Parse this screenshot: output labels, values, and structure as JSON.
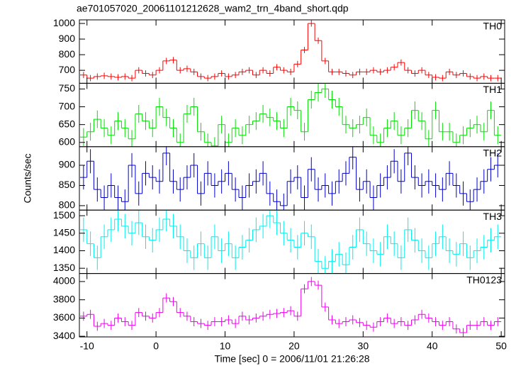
{
  "chart_data": [
    {
      "type": "step",
      "title": "ae701057020_20061101212628_wam2_trn_4band_short.qdp",
      "label": "TH0",
      "color": "#ff0000",
      "error": 20,
      "ylim": [
        617,
        1023
      ],
      "yticks": [
        700,
        800,
        900,
        1000
      ],
      "x": [
        -10.5,
        -9.5,
        -8.5,
        -7.5,
        -6.5,
        -5.5,
        -4.5,
        -3.5,
        -2.5,
        -1.5,
        -0.5,
        0.5,
        1.5,
        2.5,
        3.5,
        4.5,
        5.5,
        6.5,
        7.5,
        8.5,
        9.5,
        10.5,
        11.5,
        12.5,
        13.5,
        14.5,
        15.5,
        16.5,
        17.5,
        18.5,
        19.5,
        20.5,
        21.5,
        22.5,
        23.5,
        24.5,
        25.5,
        26.5,
        27.5,
        28.5,
        29.5,
        30.5,
        31.5,
        32.5,
        33.5,
        34.5,
        35.5,
        36.5,
        37.5,
        38.5,
        39.5,
        40.5,
        41.5,
        42.5,
        43.5,
        44.5,
        45.5,
        46.5,
        47.5,
        48.5,
        49.5
      ],
      "values": [
        670,
        650,
        660,
        665,
        660,
        655,
        660,
        650,
        700,
        680,
        670,
        700,
        760,
        765,
        700,
        710,
        690,
        660,
        650,
        660,
        680,
        660,
        670,
        690,
        700,
        670,
        700,
        680,
        720,
        700,
        690,
        740,
        830,
        1000,
        890,
        760,
        690,
        690,
        680,
        670,
        690,
        690,
        700,
        690,
        700,
        720,
        750,
        700,
        680,
        700,
        670,
        655,
        650,
        690,
        670,
        680,
        660,
        650,
        660,
        650,
        650
      ]
    },
    {
      "type": "step",
      "label": "TH1",
      "color": "#00e000",
      "error": 25,
      "ylim": [
        588,
        766
      ],
      "yticks": [
        600,
        650,
        700,
        750
      ],
      "x": [
        -10.5,
        -9.5,
        -8.5,
        -7.5,
        -6.5,
        -5.5,
        -4.5,
        -3.5,
        -2.5,
        -1.5,
        -0.5,
        0.5,
        1.5,
        2.5,
        3.5,
        4.5,
        5.5,
        6.5,
        7.5,
        8.5,
        9.5,
        10.5,
        11.5,
        12.5,
        13.5,
        14.5,
        15.5,
        16.5,
        17.5,
        18.5,
        19.5,
        20.5,
        21.5,
        22.5,
        23.5,
        24.5,
        25.5,
        26.5,
        27.5,
        28.5,
        29.5,
        30.5,
        31.5,
        32.5,
        33.5,
        34.5,
        35.5,
        36.5,
        37.5,
        38.5,
        39.5,
        40.5,
        41.5,
        42.5,
        43.5,
        44.5,
        45.5,
        46.5,
        47.5,
        48.5,
        49.5
      ],
      "values": [
        615,
        630,
        665,
        640,
        620,
        660,
        640,
        610,
        680,
        660,
        640,
        700,
        670,
        640,
        600,
        680,
        700,
        630,
        600,
        590,
        650,
        600,
        640,
        620,
        650,
        660,
        680,
        670,
        660,
        640,
        700,
        690,
        630,
        720,
        740,
        750,
        720,
        700,
        650,
        640,
        650,
        670,
        620,
        600,
        640,
        660,
        620,
        640,
        690,
        660,
        610,
        690,
        630,
        630,
        600,
        620,
        640,
        650,
        630,
        690,
        620
      ]
    },
    {
      "type": "step",
      "label": "TH2",
      "ylabel": "Counts/sec",
      "color": "#0000cc",
      "error": 30,
      "ylim": [
        789,
        946
      ],
      "yticks": [
        800,
        850,
        900
      ],
      "x": [
        -10.5,
        -9.5,
        -8.5,
        -7.5,
        -6.5,
        -5.5,
        -4.5,
        -3.5,
        -2.5,
        -1.5,
        -0.5,
        0.5,
        1.5,
        2.5,
        3.5,
        4.5,
        5.5,
        6.5,
        7.5,
        8.5,
        9.5,
        10.5,
        11.5,
        12.5,
        13.5,
        14.5,
        15.5,
        16.5,
        17.5,
        18.5,
        19.5,
        20.5,
        21.5,
        22.5,
        23.5,
        24.5,
        25.5,
        26.5,
        27.5,
        28.5,
        29.5,
        30.5,
        31.5,
        32.5,
        33.5,
        34.5,
        35.5,
        36.5,
        37.5,
        38.5,
        39.5,
        40.5,
        41.5,
        42.5,
        43.5,
        44.5,
        45.5,
        46.5,
        47.5,
        48.5,
        49.5
      ],
      "values": [
        870,
        910,
        840,
        820,
        850,
        820,
        810,
        900,
        830,
        880,
        870,
        860,
        930,
        860,
        840,
        870,
        900,
        830,
        880,
        850,
        860,
        880,
        840,
        820,
        850,
        860,
        880,
        830,
        810,
        800,
        860,
        870,
        820,
        890,
        840,
        850,
        830,
        860,
        880,
        920,
        840,
        860,
        820,
        850,
        870,
        910,
        860,
        930,
        870,
        850,
        860,
        850,
        840,
        880,
        850,
        830,
        810,
        840,
        860,
        890,
        900
      ]
    },
    {
      "type": "step",
      "label": "TH3",
      "color": "#00eeee",
      "error": 35,
      "ylim": [
        1335,
        1516
      ],
      "yticks": [
        1350,
        1400,
        1450,
        1500
      ],
      "x": [
        -10.5,
        -9.5,
        -8.5,
        -7.5,
        -6.5,
        -5.5,
        -4.5,
        -3.5,
        -2.5,
        -1.5,
        -0.5,
        0.5,
        1.5,
        2.5,
        3.5,
        4.5,
        5.5,
        6.5,
        7.5,
        8.5,
        9.5,
        10.5,
        11.5,
        12.5,
        13.5,
        14.5,
        15.5,
        16.5,
        17.5,
        18.5,
        19.5,
        20.5,
        21.5,
        22.5,
        23.5,
        24.5,
        25.5,
        26.5,
        27.5,
        28.5,
        29.5,
        30.5,
        31.5,
        32.5,
        33.5,
        34.5,
        35.5,
        36.5,
        37.5,
        38.5,
        39.5,
        40.5,
        41.5,
        42.5,
        43.5,
        44.5,
        45.5,
        46.5,
        47.5,
        48.5,
        49.5
      ],
      "values": [
        1460,
        1420,
        1380,
        1440,
        1460,
        1490,
        1470,
        1450,
        1480,
        1440,
        1430,
        1460,
        1490,
        1470,
        1440,
        1400,
        1380,
        1420,
        1380,
        1440,
        1400,
        1420,
        1380,
        1410,
        1430,
        1460,
        1470,
        1500,
        1480,
        1450,
        1430,
        1410,
        1450,
        1440,
        1370,
        1350,
        1370,
        1390,
        1360,
        1410,
        1460,
        1420,
        1400,
        1390,
        1440,
        1420,
        1380,
        1460,
        1430,
        1400,
        1380,
        1420,
        1440,
        1400,
        1390,
        1420,
        1380,
        1400,
        1410,
        1430,
        1440
      ]
    },
    {
      "type": "step",
      "label": "TH0123",
      "xlabel": "Time [sec] 0 = 2006/11/01 21:26:28",
      "color": "#ee00ee",
      "error": 50,
      "ylim": [
        3393,
        4088
      ],
      "yticks": [
        3400,
        3600,
        3800,
        4000
      ],
      "xlim": [
        -11.1,
        50.5
      ],
      "xticks": [
        -10,
        0,
        10,
        20,
        30,
        40,
        50
      ],
      "x": [
        -10.5,
        -9.5,
        -8.5,
        -7.5,
        -6.5,
        -5.5,
        -4.5,
        -3.5,
        -2.5,
        -1.5,
        -0.5,
        0.5,
        1.5,
        2.5,
        3.5,
        4.5,
        5.5,
        6.5,
        7.5,
        8.5,
        9.5,
        10.5,
        11.5,
        12.5,
        13.5,
        14.5,
        15.5,
        16.5,
        17.5,
        18.5,
        19.5,
        20.5,
        21.5,
        22.5,
        23.5,
        24.5,
        25.5,
        26.5,
        27.5,
        28.5,
        29.5,
        30.5,
        31.5,
        32.5,
        33.5,
        34.5,
        35.5,
        36.5,
        37.5,
        38.5,
        39.5,
        40.5,
        41.5,
        42.5,
        43.5,
        44.5,
        45.5,
        46.5,
        47.5,
        48.5,
        49.5
      ],
      "values": [
        3620,
        3640,
        3510,
        3540,
        3520,
        3600,
        3560,
        3520,
        3660,
        3620,
        3600,
        3660,
        3820,
        3780,
        3660,
        3620,
        3560,
        3540,
        3520,
        3560,
        3560,
        3580,
        3540,
        3620,
        3580,
        3600,
        3620,
        3640,
        3650,
        3660,
        3680,
        3620,
        3920,
        4000,
        3960,
        3720,
        3580,
        3540,
        3560,
        3580,
        3550,
        3520,
        3500,
        3560,
        3600,
        3540,
        3560,
        3520,
        3580,
        3640,
        3600,
        3560,
        3520,
        3560,
        3480,
        3440,
        3520,
        3520,
        3560,
        3520,
        3560
      ]
    }
  ]
}
